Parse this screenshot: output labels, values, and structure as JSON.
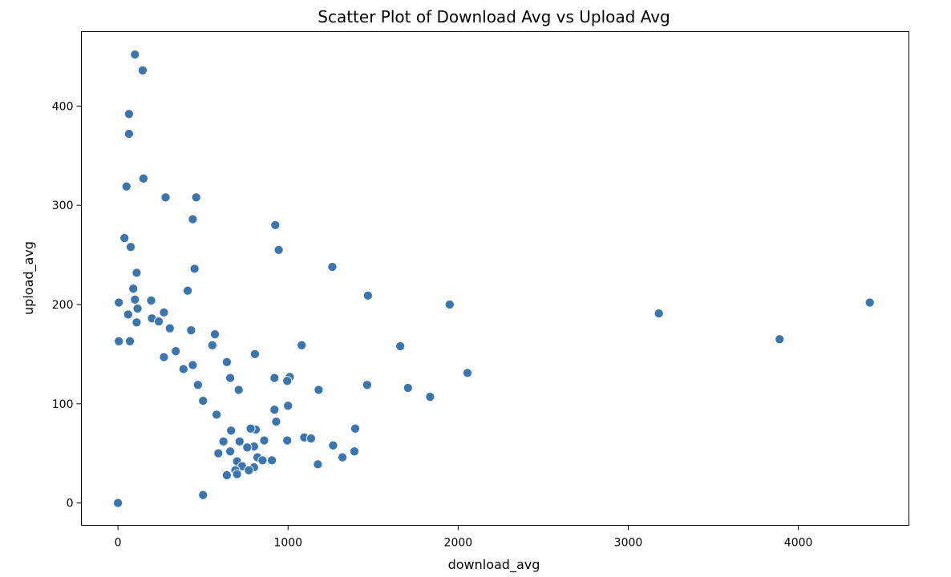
{
  "chart_data": {
    "type": "scatter",
    "title": "Scatter Plot of Download Avg vs Upload Avg",
    "xlabel": "download_avg",
    "ylabel": "upload_avg",
    "xlim": [
      -215,
      4650
    ],
    "ylim": [
      -22.5,
      475
    ],
    "xticks": [
      0,
      1000,
      2000,
      3000,
      4000
    ],
    "yticks": [
      0,
      100,
      200,
      300,
      400
    ],
    "grid": false,
    "legend": "none",
    "marker_color": "#3a75af",
    "marker_edge": "#ffffff",
    "points": [
      {
        "x": 100,
        "y": 452
      },
      {
        "x": 145,
        "y": 436
      },
      {
        "x": 65,
        "y": 392
      },
      {
        "x": 65,
        "y": 372
      },
      {
        "x": 150,
        "y": 327
      },
      {
        "x": 50,
        "y": 319
      },
      {
        "x": 280,
        "y": 308
      },
      {
        "x": 460,
        "y": 308
      },
      {
        "x": 440,
        "y": 286
      },
      {
        "x": 925,
        "y": 280
      },
      {
        "x": 38,
        "y": 267
      },
      {
        "x": 75,
        "y": 258
      },
      {
        "x": 945,
        "y": 255
      },
      {
        "x": 1260,
        "y": 238
      },
      {
        "x": 450,
        "y": 236
      },
      {
        "x": 110,
        "y": 232
      },
      {
        "x": 410,
        "y": 214
      },
      {
        "x": 1470,
        "y": 209
      },
      {
        "x": 5,
        "y": 202
      },
      {
        "x": 1950,
        "y": 200
      },
      {
        "x": 4420,
        "y": 202
      },
      {
        "x": 3180,
        "y": 191
      },
      {
        "x": 3890,
        "y": 165
      },
      {
        "x": 90,
        "y": 216
      },
      {
        "x": 100,
        "y": 205
      },
      {
        "x": 195,
        "y": 204
      },
      {
        "x": 115,
        "y": 196
      },
      {
        "x": 60,
        "y": 190
      },
      {
        "x": 270,
        "y": 192
      },
      {
        "x": 200,
        "y": 186
      },
      {
        "x": 240,
        "y": 183
      },
      {
        "x": 110,
        "y": 182
      },
      {
        "x": 430,
        "y": 174
      },
      {
        "x": 305,
        "y": 176
      },
      {
        "x": 570,
        "y": 170
      },
      {
        "x": 5,
        "y": 163
      },
      {
        "x": 70,
        "y": 163
      },
      {
        "x": 1080,
        "y": 159
      },
      {
        "x": 1660,
        "y": 158
      },
      {
        "x": 555,
        "y": 159
      },
      {
        "x": 805,
        "y": 150
      },
      {
        "x": 340,
        "y": 153
      },
      {
        "x": 640,
        "y": 142
      },
      {
        "x": 270,
        "y": 147
      },
      {
        "x": 440,
        "y": 139
      },
      {
        "x": 385,
        "y": 135
      },
      {
        "x": 2055,
        "y": 131
      },
      {
        "x": 1010,
        "y": 127
      },
      {
        "x": 920,
        "y": 126
      },
      {
        "x": 995,
        "y": 123
      },
      {
        "x": 660,
        "y": 126
      },
      {
        "x": 1465,
        "y": 119
      },
      {
        "x": 1705,
        "y": 116
      },
      {
        "x": 1180,
        "y": 114
      },
      {
        "x": 710,
        "y": 114
      },
      {
        "x": 1835,
        "y": 107
      },
      {
        "x": 470,
        "y": 119
      },
      {
        "x": 500,
        "y": 103
      },
      {
        "x": 1000,
        "y": 98
      },
      {
        "x": 920,
        "y": 94
      },
      {
        "x": 580,
        "y": 89
      },
      {
        "x": 930,
        "y": 82
      },
      {
        "x": 1395,
        "y": 75
      },
      {
        "x": 810,
        "y": 74
      },
      {
        "x": 780,
        "y": 75
      },
      {
        "x": 665,
        "y": 73
      },
      {
        "x": 1095,
        "y": 66
      },
      {
        "x": 1135,
        "y": 65
      },
      {
        "x": 995,
        "y": 63
      },
      {
        "x": 860,
        "y": 63
      },
      {
        "x": 620,
        "y": 62
      },
      {
        "x": 715,
        "y": 62
      },
      {
        "x": 1265,
        "y": 58
      },
      {
        "x": 800,
        "y": 57
      },
      {
        "x": 760,
        "y": 56
      },
      {
        "x": 1390,
        "y": 52
      },
      {
        "x": 660,
        "y": 52
      },
      {
        "x": 590,
        "y": 50
      },
      {
        "x": 820,
        "y": 46
      },
      {
        "x": 1320,
        "y": 46
      },
      {
        "x": 905,
        "y": 43
      },
      {
        "x": 850,
        "y": 43
      },
      {
        "x": 700,
        "y": 42
      },
      {
        "x": 1175,
        "y": 39
      },
      {
        "x": 730,
        "y": 37
      },
      {
        "x": 800,
        "y": 36
      },
      {
        "x": 690,
        "y": 33
      },
      {
        "x": 770,
        "y": 33
      },
      {
        "x": 700,
        "y": 29
      },
      {
        "x": 640,
        "y": 28
      },
      {
        "x": 500,
        "y": 8
      },
      {
        "x": 0,
        "y": 0
      }
    ]
  }
}
